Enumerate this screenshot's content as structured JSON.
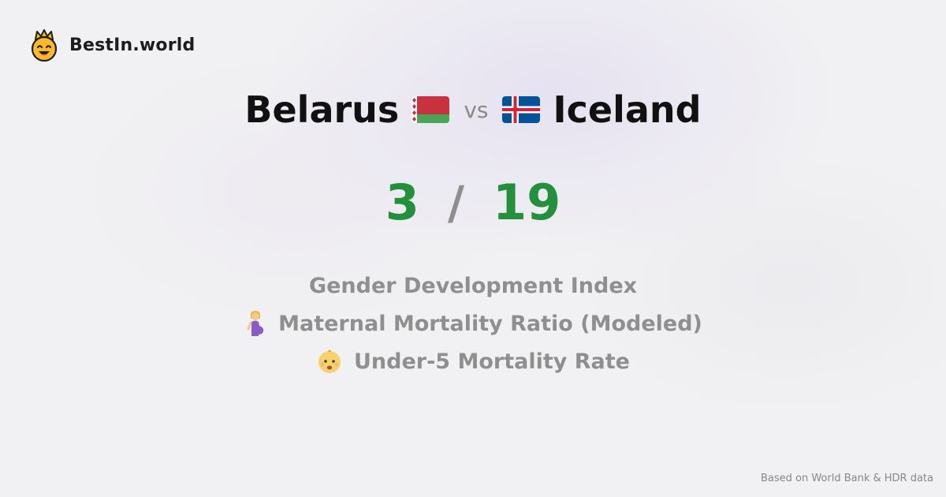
{
  "brand": {
    "name": "BestIn.world",
    "logo_icon": "crowned-smiley-icon"
  },
  "comparison": {
    "left_country": "Belarus",
    "left_flag_icon": "belarus-flag-icon",
    "vs_label": "vs",
    "right_country": "Iceland",
    "right_flag_icon": "iceland-flag-icon"
  },
  "score": {
    "left": "3",
    "separator": "/",
    "right": "19",
    "color": "#23913c"
  },
  "metrics": [
    {
      "label": "Gender Development Index",
      "icon": ""
    },
    {
      "label": "Maternal Mortality Ratio (Modeled)",
      "icon": "pregnant-woman-icon"
    },
    {
      "label": "Under-5 Mortality Rate",
      "icon": "baby-icon"
    }
  ],
  "footer": {
    "source": "Based on World Bank & HDR data"
  }
}
